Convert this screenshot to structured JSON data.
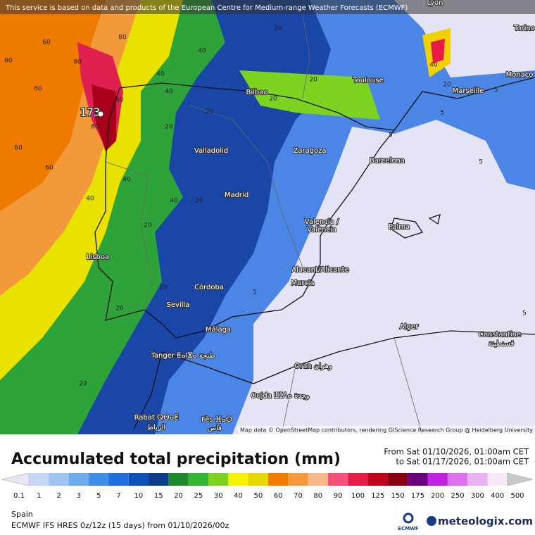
{
  "notice": "This service is based on data and products of the European Centre for Medium-range Weather Forecasts (ECMWF)",
  "map": {
    "cities": [
      "Lyon",
      "Torino",
      "Monaco",
      "Marseille",
      "Toulouse",
      "Bilbao",
      "Valladolid",
      "Zaragoza",
      "Barcelona",
      "Madrid",
      "Valencia /",
      "València",
      "Palma",
      "Lisboa",
      "Alacant/Alicante",
      "Murcia",
      "Córdoba",
      "Sevilla",
      "Málaga",
      "Alger",
      "Constantine",
      "قسنطينة",
      "Tanger ⵟⴰⵏⴵⴰ طنجة",
      "Oran وهران",
      "Oujda ⵡⵊⴷⴰ وجدة",
      "Rabat ⵕⴱⴰⵟ",
      "الرباط",
      "Fès ⴼⴰⵙ",
      "فاس"
    ],
    "max_label": 173,
    "contour_labels": [
      80,
      60,
      80,
      60,
      40,
      60,
      40,
      40,
      80,
      80,
      20,
      20,
      60,
      60,
      40,
      40,
      40,
      20,
      20,
      20,
      20,
      20,
      20,
      20,
      20,
      5,
      5,
      5,
      5,
      5,
      5,
      20,
      40
    ],
    "attribution": "Map data © OpenStreetMap contributors, rendering GIScience Research Group @ Heidelberg University"
  },
  "legend": {
    "title": "Accumulated total precipitation (mm)",
    "from": "From Sat 01/10/2026, 01:00am CET",
    "to": "to Sat 01/17/2026, 01:00am CET",
    "levels": [
      0.1,
      1,
      2,
      3,
      5,
      7,
      10,
      15,
      20,
      25,
      30,
      40,
      50,
      60,
      70,
      80,
      90,
      100,
      125,
      150,
      175,
      200,
      250,
      300,
      400,
      500
    ],
    "colors": [
      "#e6e6f6",
      "#c4d8f6",
      "#9cc3f4",
      "#6eaaf0",
      "#3f8de8",
      "#1f6fe0",
      "#0d50b8",
      "#0b3b8c",
      "#1e8a2c",
      "#34b533",
      "#7ed321",
      "#f7f200",
      "#e6d800",
      "#f07b00",
      "#f59a3c",
      "#f8b888",
      "#f5507a",
      "#e81a4a",
      "#c0001a",
      "#8a0010",
      "#6a0080",
      "#c020e0",
      "#dd70ee",
      "#ecb0f4",
      "#f7e8f7",
      "#c8c8c8"
    ]
  },
  "footer": {
    "region": "Spain",
    "model": "ECMWF IFS HRES 0z/12z (15 days) from 01/10/2026/00z",
    "logo": "ECMWF",
    "brand": "meteologix.com"
  }
}
